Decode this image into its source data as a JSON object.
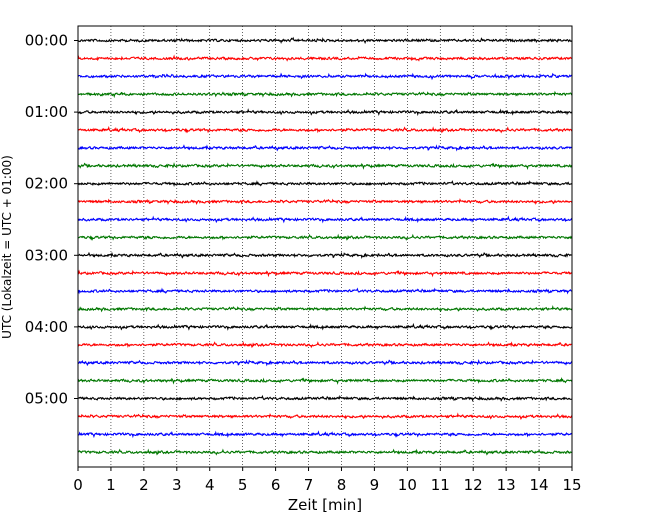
{
  "chart_data": {
    "type": "line",
    "title": "",
    "xlabel": "Zeit  [min]",
    "ylabel": "UTC (Lokalzeit = UTC + 01:00)",
    "xlim": [
      0,
      15
    ],
    "x_ticks": [
      "0",
      "1",
      "2",
      "3",
      "4",
      "5",
      "6",
      "7",
      "8",
      "9",
      "10",
      "11",
      "12",
      "13",
      "14",
      "15"
    ],
    "y_ticks": [
      "00:00",
      "01:00",
      "02:00",
      "03:00",
      "04:00",
      "05:00"
    ],
    "grid": "vertical dotted lines at each minute",
    "legend": "none",
    "series_colors": [
      "#000000",
      "#ff0000",
      "#0000ff",
      "#007700"
    ],
    "trace_count": 24,
    "trace_interval_minutes": 15
  }
}
